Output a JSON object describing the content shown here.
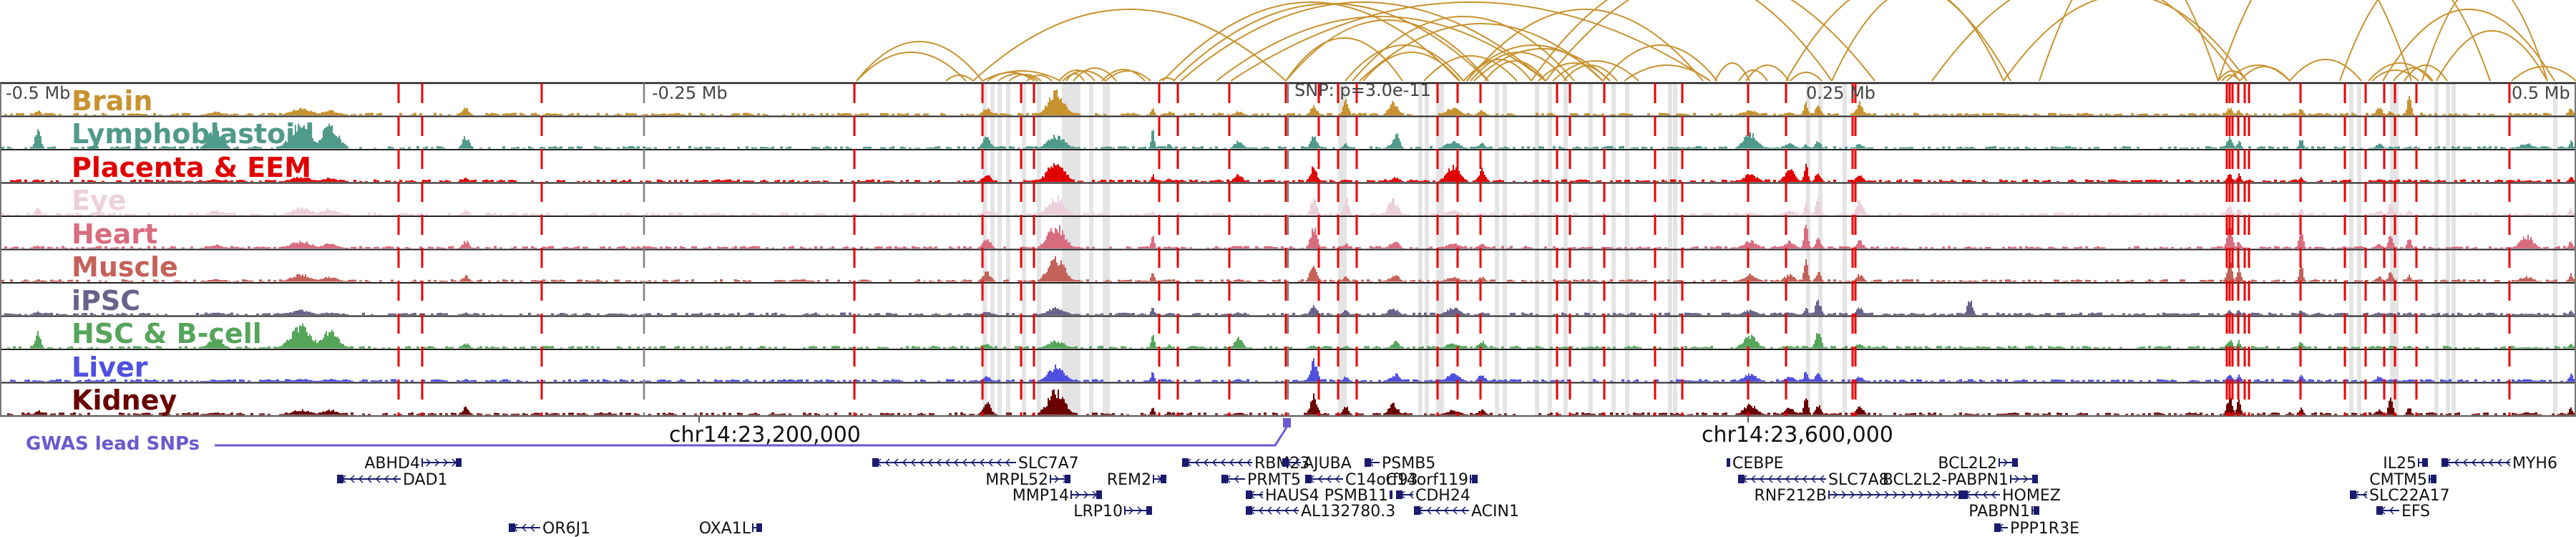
{
  "axis": {
    "ticks": [
      {
        "label": "-0.5 Mb",
        "pos": -0.5
      },
      {
        "label": "-0.25 Mb",
        "pos": -0.25
      },
      {
        "label": "0.25 Mb",
        "pos": 0.25
      },
      {
        "label": "0.5 Mb",
        "pos": 0.5
      }
    ],
    "snp_label": "SNP: p=3.0e-11",
    "coordinates": [
      {
        "label": "chr14:23,200,000",
        "mb": -0.19
      },
      {
        "label": "chr14:23,600,000",
        "mb": 0.21
      }
    ]
  },
  "tracks": [
    {
      "name": "Brain",
      "color": "#c8922e"
    },
    {
      "name": "Lymphoblastoid",
      "color": "#4f9a8a"
    },
    {
      "name": "Placenta & EEM",
      "color": "#e00000"
    },
    {
      "name": "Eye",
      "color": "#ecd0dc"
    },
    {
      "name": "Heart",
      "color": "#d96d80"
    },
    {
      "name": "Muscle",
      "color": "#c4625a"
    },
    {
      "name": "iPSC",
      "color": "#69628a"
    },
    {
      "name": "HSC & B-cell",
      "color": "#55a55a"
    },
    {
      "name": "Liver",
      "color": "#5050e0"
    },
    {
      "name": "Kidney",
      "color": "#6a0000"
    }
  ],
  "gwas": {
    "label": "GWAS lead SNPs",
    "color": "#6a5acd"
  },
  "colors": {
    "arc": "#c8922e",
    "ccre": "#e4e4e4",
    "dashed": "#ee0000",
    "gene": "#1a1a6e",
    "snp": "#808080"
  },
  "genes": [
    {
      "name": "ABHD4",
      "strand": "+",
      "row": 0,
      "start": 590,
      "end": 645,
      "labelSide": "left"
    },
    {
      "name": "DAD1",
      "strand": "-",
      "row": 1,
      "start": 472,
      "end": 560,
      "labelSide": "right"
    },
    {
      "name": "OR6J1",
      "strand": "-",
      "row": 5,
      "start": 712,
      "end": 755,
      "labelSide": "right"
    },
    {
      "name": "SLC7A7",
      "strand": "-",
      "row": 0,
      "start": 1220,
      "end": 1420,
      "labelSide": "right"
    },
    {
      "name": "MRPL52",
      "strand": "+",
      "row": 1,
      "start": 1468,
      "end": 1496,
      "labelSide": "left"
    },
    {
      "name": "MMP14",
      "strand": "+",
      "row": 2,
      "start": 1497,
      "end": 1540,
      "labelSide": "left"
    },
    {
      "name": "REM2",
      "strand": "+",
      "row": 1,
      "start": 1612,
      "end": 1630,
      "labelSide": "left"
    },
    {
      "name": "LRP10",
      "strand": "+",
      "row": 3,
      "start": 1572,
      "end": 1610,
      "labelSide": "left"
    },
    {
      "name": "OXA1L",
      "strand": "+",
      "row": 5,
      "start": 1052,
      "end": 1065,
      "labelSide": "left"
    },
    {
      "name": "RBM23",
      "strand": "-",
      "row": 0,
      "start": 1653,
      "end": 1750,
      "labelSide": "right"
    },
    {
      "name": "PRMT5",
      "strand": "-",
      "row": 1,
      "start": 1708,
      "end": 1740,
      "labelSide": "right"
    },
    {
      "name": "HAUS4",
      "strand": "-",
      "row": 2,
      "start": 1742,
      "end": 1765,
      "labelSide": "right"
    },
    {
      "name": "AL132780.3",
      "strand": "-",
      "row": 3,
      "start": 1742,
      "end": 1815,
      "labelSide": "right"
    },
    {
      "name": "AJUBA",
      "strand": "-",
      "row": 0,
      "start": 1793,
      "end": 1818,
      "labelSide": "right"
    },
    {
      "name": "C14orf93",
      "strand": "-",
      "row": 1,
      "start": 1825,
      "end": 1877,
      "labelSide": "right"
    },
    {
      "name": "PSMB5",
      "strand": "-",
      "row": 0,
      "start": 1908,
      "end": 1928,
      "labelSide": "right"
    },
    {
      "name": "PSMB11",
      "strand": "+",
      "row": 2,
      "start": 1943,
      "end": 1945,
      "labelSide": "left"
    },
    {
      "name": "CDH24",
      "strand": "-",
      "row": 2,
      "start": 1952,
      "end": 1975,
      "labelSide": "right"
    },
    {
      "name": "C14orf119",
      "strand": "+",
      "row": 1,
      "start": 2055,
      "end": 2065,
      "labelSide": "left"
    },
    {
      "name": "ACIN1",
      "strand": "-",
      "row": 3,
      "start": 1977,
      "end": 2053,
      "labelSide": "right"
    },
    {
      "name": "CEBPE",
      "strand": "-",
      "row": 0,
      "start": 2414,
      "end": 2418,
      "labelSide": "right"
    },
    {
      "name": "SLC7A8",
      "strand": "-",
      "row": 1,
      "start": 2430,
      "end": 2552,
      "labelSide": "right"
    },
    {
      "name": "RNF212B",
      "strand": "+",
      "row": 2,
      "start": 2556,
      "end": 2745,
      "labelSide": "left"
    },
    {
      "name": "HOMEZ",
      "strand": "-",
      "row": 2,
      "start": 2742,
      "end": 2795,
      "labelSide": "right"
    },
    {
      "name": "BCL2L2",
      "strand": "+",
      "row": 0,
      "start": 2794,
      "end": 2820,
      "labelSide": "left"
    },
    {
      "name": "BCL2L2-PABPN1",
      "strand": "+",
      "row": 1,
      "start": 2810,
      "end": 2848,
      "labelSide": "left"
    },
    {
      "name": "PABPN1",
      "strand": "+",
      "row": 3,
      "start": 2840,
      "end": 2850,
      "labelSide": "left"
    },
    {
      "name": "PPP1R3E",
      "strand": "-",
      "row": 4,
      "start": 2788,
      "end": 2806,
      "labelSide": "right"
    },
    {
      "name": "IL25",
      "strand": "+",
      "row": 0,
      "start": 3380,
      "end": 3393,
      "labelSide": "left"
    },
    {
      "name": "MYH6",
      "strand": "-",
      "row": 0,
      "start": 3413,
      "end": 3508,
      "labelSide": "right"
    },
    {
      "name": "CMTM5",
      "strand": "+",
      "row": 1,
      "start": 3395,
      "end": 3405,
      "labelSide": "left"
    },
    {
      "name": "SLC22A17",
      "strand": "-",
      "row": 2,
      "start": 3285,
      "end": 3308,
      "labelSide": "right"
    },
    {
      "name": "EFS",
      "strand": "-",
      "row": 3,
      "start": 3322,
      "end": 3353,
      "labelSide": "right"
    }
  ]
}
